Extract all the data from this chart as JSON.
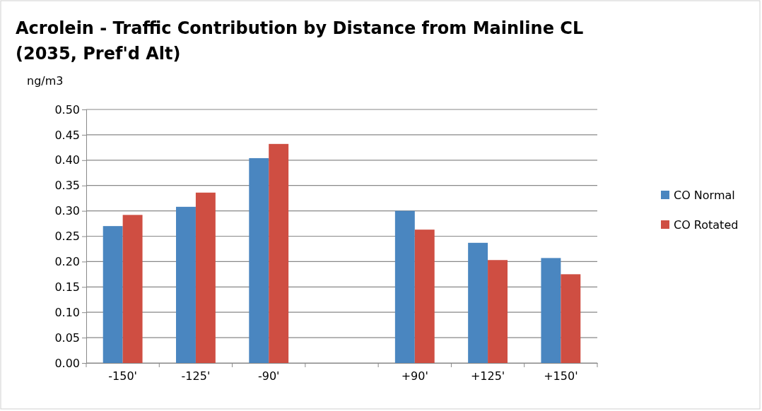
{
  "chart_data": {
    "type": "bar",
    "title": "Acrolein - Traffic Contribution by Distance from Mainline CL\n(2035, Pref'd Alt)",
    "ylabel": "ng/m3",
    "categories": [
      "-150'",
      "-125'",
      "-90'",
      null,
      "+90'",
      "+125'",
      "+150'"
    ],
    "series": [
      {
        "name": "CO Normal",
        "color": "#4a86c0",
        "values": [
          0.27,
          0.308,
          0.404,
          null,
          0.3,
          0.237,
          0.207
        ]
      },
      {
        "name": "CO Rotated",
        "color": "#cf4e42",
        "values": [
          0.292,
          0.336,
          0.432,
          null,
          0.263,
          0.203,
          0.175
        ]
      }
    ],
    "ylim": [
      0,
      0.5
    ],
    "yticks": [
      {
        "value": 0,
        "label": "0.00"
      },
      {
        "value": 0.05,
        "label": "0.05"
      },
      {
        "value": 0.1,
        "label": "0.10"
      },
      {
        "value": 0.15,
        "label": "0.15"
      },
      {
        "value": 0.2,
        "label": "0.20"
      },
      {
        "value": 0.25,
        "label": "0.25"
      },
      {
        "value": 0.3,
        "label": "0.30"
      },
      {
        "value": 0.35,
        "label": "0.35"
      },
      {
        "value": 0.4,
        "label": "0.40"
      },
      {
        "value": 0.45,
        "label": "0.45"
      },
      {
        "value": 0.5,
        "label": "0.50"
      }
    ],
    "grid": "y",
    "legend": "right"
  }
}
